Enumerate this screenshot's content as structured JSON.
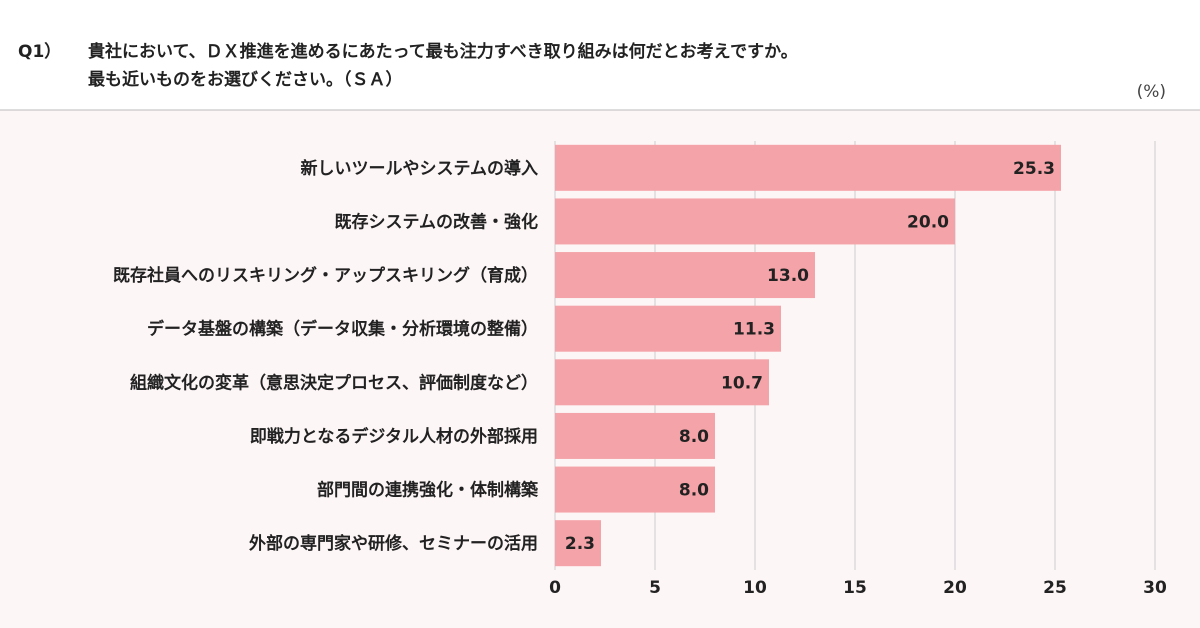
{
  "chart_data": {
    "type": "barh",
    "question_number": "Q1）",
    "title": [
      "貴社において、ＤＸ推進を進めるにあたって最も注力すべき取り組みは何だとお考えですか。",
      "最も近いものをお選びください。（ＳＡ）"
    ],
    "unit_label": "(%)",
    "categories": [
      "新しいツールやシステムの導入",
      "既存システムの改善・強化",
      "既存社員へのリスキリング・アップスキリング（育成）",
      "データ基盤の構築（データ収集・分析環境の整備）",
      "組織文化の変革（意思決定プロセス、評価制度など）",
      "即戦力となるデジタル人材の外部採用",
      "部門間の連携強化・体制構築",
      "外部の専門家や研修、セミナーの活用"
    ],
    "values": [
      25.3,
      20.0,
      13.0,
      11.3,
      10.7,
      8.0,
      8.0,
      2.3
    ],
    "value_labels": [
      "25.3",
      "20.0",
      "13.0",
      "11.3",
      "10.7",
      "8.0",
      "8.0",
      "2.3"
    ],
    "color": "#f4a3a8",
    "xlim": [
      0,
      30
    ],
    "xticks": [
      0,
      5,
      10,
      15,
      20,
      25,
      30
    ],
    "grid": true
  }
}
